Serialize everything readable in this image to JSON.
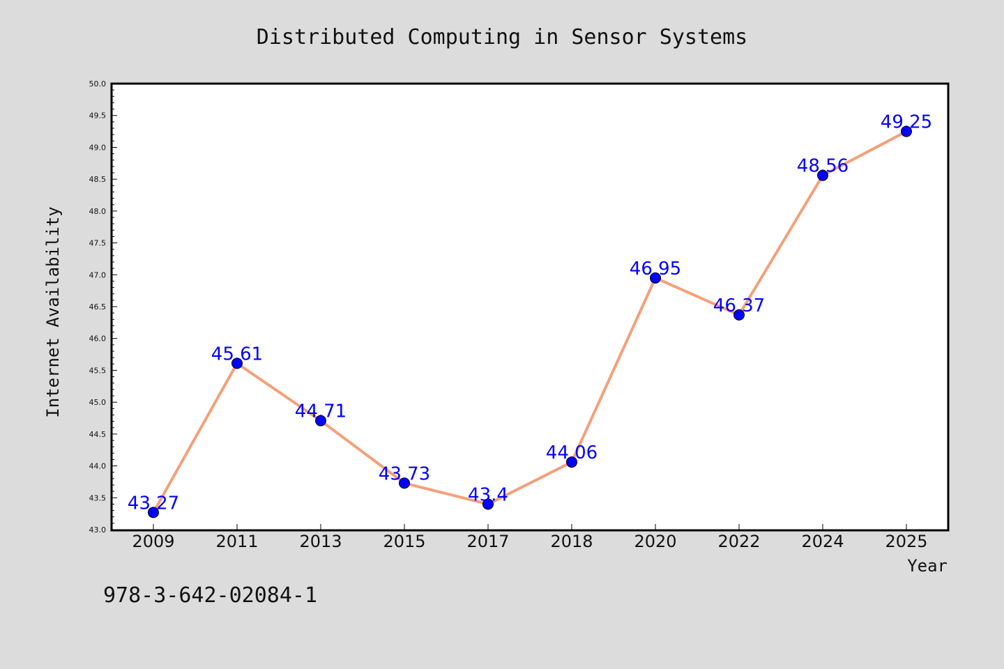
{
  "chart_data": {
    "type": "line",
    "title": "Distributed Computing in Sensor Systems",
    "xlabel": "Year",
    "ylabel": "Internet Availability",
    "categories": [
      "2009",
      "2011",
      "2013",
      "2015",
      "2017",
      "2018",
      "2020",
      "2022",
      "2024",
      "2025"
    ],
    "values": [
      43.27,
      45.61,
      44.71,
      43.73,
      43.4,
      44.06,
      46.95,
      46.37,
      48.56,
      49.25
    ],
    "data_labels": [
      "43.27",
      "45.61",
      "44.71",
      "43.73",
      "43.4",
      "44.06",
      "46.95",
      "46.37",
      "48.56",
      "49.25"
    ],
    "ylim": [
      43.0,
      50.0
    ],
    "yticks": [
      "43.0",
      "43.5",
      "44.0",
      "44.5",
      "45.0",
      "45.5",
      "46.0",
      "46.5",
      "47.0",
      "47.5",
      "48.0",
      "48.5",
      "49.0",
      "49.5",
      "50.0"
    ],
    "grid": false,
    "line_color": "#f4a07a",
    "marker_color": "#0000ff",
    "label_color": "#0000ff"
  },
  "footer": {
    "text": "978-3-642-02084-1"
  }
}
